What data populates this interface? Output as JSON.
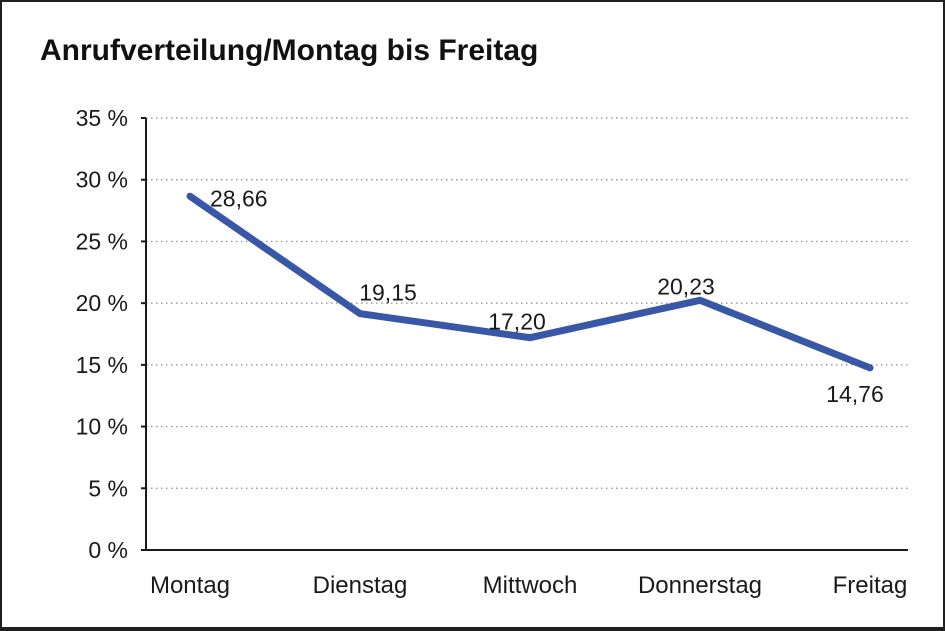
{
  "page": {
    "title": "Anrufverteilung/Montag bis Freitag"
  },
  "chart_data": {
    "type": "line",
    "title": "Anrufverteilung/Montag bis Freitag",
    "categories": [
      "Montag",
      "Dienstag",
      "Mittwoch",
      "Donnerstag",
      "Freitag"
    ],
    "series": [
      {
        "name": "Anrufverteilung",
        "values": [
          28.66,
          19.15,
          17.2,
          20.23,
          14.76
        ],
        "value_labels": [
          "28,66",
          "19,15",
          "17,20",
          "20,23",
          "14,76"
        ],
        "color": "#3857A6"
      }
    ],
    "xlabel": "",
    "ylabel": "",
    "ylim": [
      0,
      35
    ],
    "ytick_step": 5,
    "yticks": [
      {
        "value": 35,
        "label": "35 %"
      },
      {
        "value": 30,
        "label": "30 %"
      },
      {
        "value": 25,
        "label": "25 %"
      },
      {
        "value": 20,
        "label": "20 %"
      },
      {
        "value": 15,
        "label": "15 %"
      },
      {
        "value": 10,
        "label": "10 %"
      },
      {
        "value": 5,
        "label": "5 %"
      },
      {
        "value": 0,
        "label": "0 %"
      }
    ],
    "grid": {
      "horizontal": true,
      "style": "dotted",
      "color": "#8c8c8c"
    },
    "legend": "none",
    "axis_color": "#1a1a1a",
    "text_color": "#1a1a1a",
    "background": "#ffffff"
  }
}
